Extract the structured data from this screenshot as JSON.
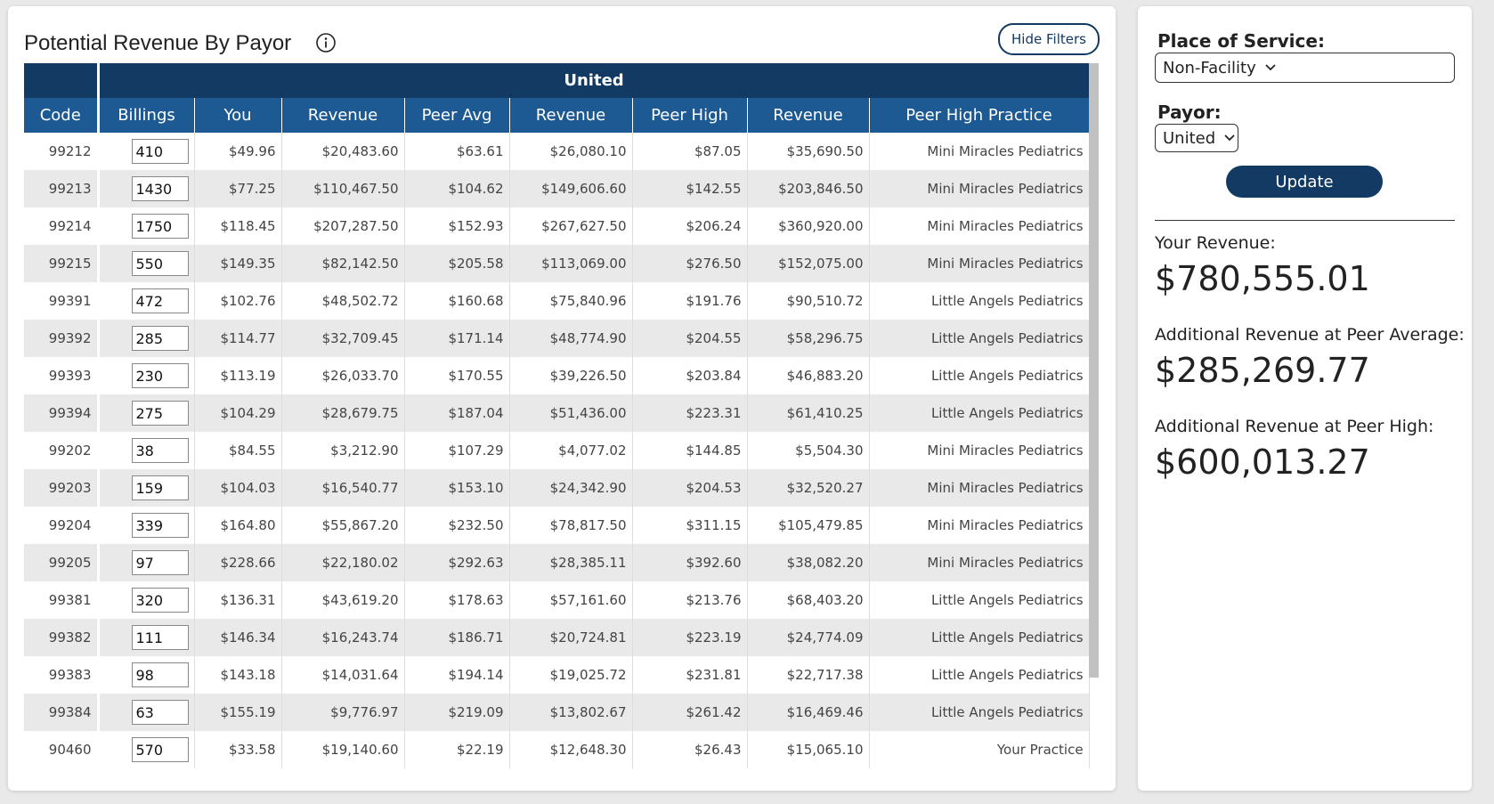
{
  "header": {
    "title": "Potential Revenue By Payor",
    "hide_filters_button": "Hide Filters"
  },
  "table": {
    "group_header": "United",
    "columns": [
      "Code",
      "Billings",
      "You",
      "Revenue",
      "Peer Avg",
      "Revenue",
      "Peer High",
      "Revenue",
      "Peer High Practice"
    ],
    "rows": [
      [
        "99212",
        "410",
        "$49.96",
        "$20,483.60",
        "$63.61",
        "$26,080.10",
        "$87.05",
        "$35,690.50",
        "Mini Miracles Pediatrics"
      ],
      [
        "99213",
        "1430",
        "$77.25",
        "$110,467.50",
        "$104.62",
        "$149,606.60",
        "$142.55",
        "$203,846.50",
        "Mini Miracles Pediatrics"
      ],
      [
        "99214",
        "1750",
        "$118.45",
        "$207,287.50",
        "$152.93",
        "$267,627.50",
        "$206.24",
        "$360,920.00",
        "Mini Miracles Pediatrics"
      ],
      [
        "99215",
        "550",
        "$149.35",
        "$82,142.50",
        "$205.58",
        "$113,069.00",
        "$276.50",
        "$152,075.00",
        "Mini Miracles Pediatrics"
      ],
      [
        "99391",
        "472",
        "$102.76",
        "$48,502.72",
        "$160.68",
        "$75,840.96",
        "$191.76",
        "$90,510.72",
        "Little Angels Pediatrics"
      ],
      [
        "99392",
        "285",
        "$114.77",
        "$32,709.45",
        "$171.14",
        "$48,774.90",
        "$204.55",
        "$58,296.75",
        "Little Angels Pediatrics"
      ],
      [
        "99393",
        "230",
        "$113.19",
        "$26,033.70",
        "$170.55",
        "$39,226.50",
        "$203.84",
        "$46,883.20",
        "Little Angels Pediatrics"
      ],
      [
        "99394",
        "275",
        "$104.29",
        "$28,679.75",
        "$187.04",
        "$51,436.00",
        "$223.31",
        "$61,410.25",
        "Little Angels Pediatrics"
      ],
      [
        "99202",
        "38",
        "$84.55",
        "$3,212.90",
        "$107.29",
        "$4,077.02",
        "$144.85",
        "$5,504.30",
        "Mini Miracles Pediatrics"
      ],
      [
        "99203",
        "159",
        "$104.03",
        "$16,540.77",
        "$153.10",
        "$24,342.90",
        "$204.53",
        "$32,520.27",
        "Mini Miracles Pediatrics"
      ],
      [
        "99204",
        "339",
        "$164.80",
        "$55,867.20",
        "$232.50",
        "$78,817.50",
        "$311.15",
        "$105,479.85",
        "Mini Miracles Pediatrics"
      ],
      [
        "99205",
        "97",
        "$228.66",
        "$22,180.02",
        "$292.63",
        "$28,385.11",
        "$392.60",
        "$38,082.20",
        "Mini Miracles Pediatrics"
      ],
      [
        "99381",
        "320",
        "$136.31",
        "$43,619.20",
        "$178.63",
        "$57,161.60",
        "$213.76",
        "$68,403.20",
        "Little Angels Pediatrics"
      ],
      [
        "99382",
        "111",
        "$146.34",
        "$16,243.74",
        "$186.71",
        "$20,724.81",
        "$223.19",
        "$24,774.09",
        "Little Angels Pediatrics"
      ],
      [
        "99383",
        "98",
        "$143.18",
        "$14,031.64",
        "$194.14",
        "$19,025.72",
        "$231.81",
        "$22,717.38",
        "Little Angels Pediatrics"
      ],
      [
        "99384",
        "63",
        "$155.19",
        "$9,776.97",
        "$219.09",
        "$13,802.67",
        "$261.42",
        "$16,469.46",
        "Little Angels Pediatrics"
      ],
      [
        "90460",
        "570",
        "$33.58",
        "$19,140.60",
        "$22.19",
        "$12,648.30",
        "$26.43",
        "$15,065.10",
        "Your Practice"
      ]
    ]
  },
  "filters": {
    "place_of_service_label": "Place of Service:",
    "place_of_service_value": "Non-Facility",
    "payor_label": "Payor:",
    "payor_value": "United",
    "update_button": "Update"
  },
  "summary": {
    "your_revenue_label": "Your Revenue:",
    "your_revenue": "$780,555.01",
    "peer_average_label": "Additional Revenue at Peer Average:",
    "peer_average": "$285,269.77",
    "peer_high_label": "Additional Revenue at Peer High:",
    "peer_high": "$600,013.27"
  }
}
